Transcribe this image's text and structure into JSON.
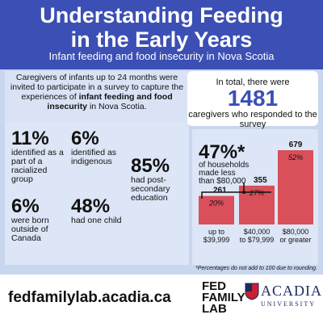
{
  "header": {
    "title_line1": "Understanding Feeding",
    "title_line2": "in the Early Years",
    "subtitle": "Infant feeding and food insecurity in Nova Scotia"
  },
  "intro": {
    "text_before": "Caregivers of infants up to 24 months were invited to participate in a survey to capture the experiences of ",
    "text_bold": "infant feeding and food insecurity",
    "text_after": " in Nova Scotia."
  },
  "stats": [
    {
      "pct": "11%",
      "desc": "identified as a part of a racialized group"
    },
    {
      "pct": "6%",
      "desc": "identified as indigenous"
    },
    {
      "pct": "85%",
      "desc": "had post-secondary education"
    },
    {
      "pct": "6%",
      "desc": "were born outside of Canada"
    },
    {
      "pct": "48%",
      "desc": "had one child"
    }
  ],
  "total_card": {
    "line1": "In total, there were",
    "number": "1481",
    "line2": "caregivers who responded to the survey"
  },
  "income_callout": {
    "pct": "47%*",
    "desc": "of households made less than $80,000"
  },
  "chart_data": {
    "type": "bar",
    "categories": [
      "up to $39,999",
      "$40,000 to $79,999",
      "$80,000 or greater"
    ],
    "values": [
      261,
      355,
      679
    ],
    "percent_labels": [
      "20%",
      "27%",
      "52%"
    ],
    "bar_color": "#d9505a"
  },
  "footnote": "*Percentages do not add to 100 due to rounding.",
  "footer": {
    "url": "fedfamilylab.acadia.ca",
    "logo1_line1": "FED",
    "logo1_line2": "FAMILY",
    "logo1_line3": "LAB",
    "logo2_name": "ACADIA",
    "logo2_sub": "UNIVERSITY"
  },
  "colors": {
    "header_bg": "#3b4fb4",
    "background": "#c9d6ef",
    "bar": "#d9505a"
  }
}
